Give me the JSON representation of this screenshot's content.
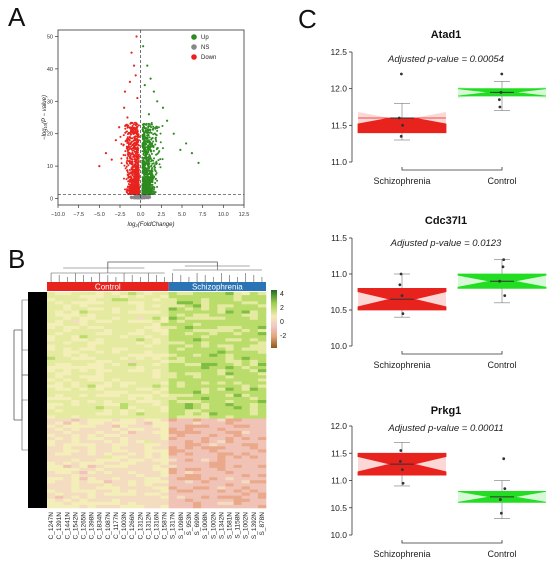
{
  "panels": {
    "a": "A",
    "b": "B",
    "c": "C"
  },
  "chart_data": [
    {
      "type": "scatter",
      "panel": "A",
      "xlabel": "log₂(FoldChange)",
      "ylabel": "−log₁₀(P − value)",
      "xlim": [
        -10,
        12.5
      ],
      "ylim": [
        -2,
        52
      ],
      "xticks": [
        "−10.0",
        "−7.5",
        "−5.0",
        "−2.5",
        "0.0",
        "2.5",
        "5.0",
        "7.5",
        "10.0",
        "12.5"
      ],
      "yticks": [
        "0",
        "10",
        "20",
        "30",
        "40",
        "50"
      ],
      "threshold_y": 1.3,
      "threshold_x": 0,
      "legend": [
        {
          "label": "Up",
          "color": "#2e8b1f"
        },
        {
          "label": "NS",
          "color": "#888888"
        },
        {
          "label": "Down",
          "color": "#e8231e"
        }
      ],
      "legend_position": "top-right",
      "highlight_points": {
        "down": [
          [
            -0.5,
            50
          ],
          [
            -1.1,
            45
          ],
          [
            -0.8,
            41
          ],
          [
            -1.3,
            36
          ],
          [
            -0.4,
            31
          ],
          [
            -2.0,
            28
          ],
          [
            -1.6,
            25
          ],
          [
            -2.6,
            22
          ],
          [
            -3.0,
            18
          ],
          [
            -4.2,
            14
          ],
          [
            -5.0,
            10
          ],
          [
            -3.5,
            12
          ],
          [
            -1.9,
            33
          ],
          [
            -0.6,
            38
          ]
        ],
        "up": [
          [
            0.3,
            47
          ],
          [
            0.8,
            41
          ],
          [
            1.2,
            37
          ],
          [
            1.6,
            33
          ],
          [
            2.0,
            30
          ],
          [
            0.5,
            35
          ],
          [
            2.7,
            28
          ],
          [
            3.2,
            24
          ],
          [
            4.0,
            20
          ],
          [
            5.5,
            17
          ],
          [
            6.2,
            14
          ],
          [
            7.0,
            11
          ],
          [
            4.8,
            15
          ],
          [
            1.0,
            26
          ]
        ]
      }
    },
    {
      "type": "heatmap",
      "panel": "B",
      "groups": [
        {
          "label": "Control",
          "color": "#e8231e"
        },
        {
          "label": "Schizophrenia",
          "color": "#2a73b5"
        }
      ],
      "colorbar_ticks": [
        "4",
        "2",
        "0",
        "-2"
      ],
      "colorbar_colors": [
        "#1f6b23",
        "#9acd4a",
        "#f3ecb0",
        "#f2c8c8",
        "#e5a47a",
        "#8b5a1a"
      ],
      "columns": [
        "C_1247N",
        "C_1391N",
        "C_1441N",
        "C_1542N",
        "C_1265N",
        "C_1398N",
        "C_1834N",
        "C_1087N",
        "C_1177N",
        "C_1003N",
        "C_1266N",
        "C_1312N",
        "C_1312N",
        "C_1316N",
        "C_1587N",
        "S_1317N",
        "S_1098N",
        "S_953N",
        "S_699N",
        "S_1008N",
        "S_1002N",
        "S_1342N",
        "S_1581N",
        "S_1158N",
        "S_1002N",
        "S_1392N",
        "S_878N"
      ]
    },
    {
      "type": "box",
      "panel": "C",
      "title": "Atad1",
      "annotation": "Adjusted p-value = 0.00054",
      "categories": [
        "Schizophrenia",
        "Control"
      ],
      "yticks": [
        "11.0",
        "11.5",
        "12.0",
        "12.5"
      ],
      "ylim": [
        11.0,
        12.5
      ],
      "series": [
        {
          "name": "Schizophrenia",
          "color": "#e8231e",
          "min": 11.3,
          "q1": 11.4,
          "median": 11.6,
          "q3": 11.6,
          "max": 11.8,
          "points": [
            12.2,
            11.6,
            11.35,
            11.5
          ]
        },
        {
          "name": "Control",
          "color": "#22dd22",
          "min": 11.7,
          "q1": 11.9,
          "median": 11.95,
          "q3": 12.0,
          "max": 12.1,
          "points": [
            12.2,
            11.95,
            11.85,
            11.75
          ]
        }
      ]
    },
    {
      "type": "box",
      "panel": "C",
      "title": "Cdc37l1",
      "annotation": "Adjusted p-value = 0.0123",
      "categories": [
        "Schizophrenia",
        "Control"
      ],
      "yticks": [
        "10.0",
        "10.5",
        "11.0",
        "11.5"
      ],
      "ylim": [
        10.0,
        11.5
      ],
      "series": [
        {
          "name": "Schizophrenia",
          "color": "#e8231e",
          "min": 10.4,
          "q1": 10.5,
          "median": 10.65,
          "q3": 10.8,
          "max": 11.0,
          "points": [
            10.45,
            10.7,
            10.85,
            11.0
          ]
        },
        {
          "name": "Control",
          "color": "#22dd22",
          "min": 10.6,
          "q1": 10.8,
          "median": 10.9,
          "q3": 11.0,
          "max": 11.2,
          "points": [
            10.7,
            10.9,
            11.1,
            11.2
          ]
        }
      ]
    },
    {
      "type": "box",
      "panel": "C",
      "title": "Prkg1",
      "annotation": "Adjusted p-value = 0.00011",
      "categories": [
        "Schizophrenia",
        "Control"
      ],
      "yticks": [
        "10.0",
        "10.5",
        "11.0",
        "11.5",
        "12.0"
      ],
      "ylim": [
        10.0,
        12.0
      ],
      "series": [
        {
          "name": "Schizophrenia",
          "color": "#e8231e",
          "min": 10.9,
          "q1": 11.1,
          "median": 11.3,
          "q3": 11.5,
          "max": 11.7,
          "points": [
            10.95,
            11.2,
            11.35,
            11.55
          ]
        },
        {
          "name": "Control",
          "color": "#22dd22",
          "min": 10.3,
          "q1": 10.6,
          "median": 10.7,
          "q3": 10.8,
          "max": 11.0,
          "points": [
            11.4,
            10.4,
            10.65,
            10.85
          ]
        }
      ]
    }
  ]
}
